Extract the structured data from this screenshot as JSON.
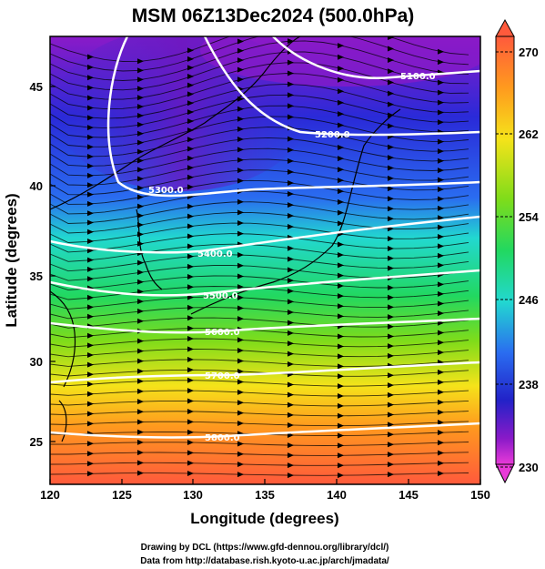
{
  "title": "MSM 06Z13Dec2024 (500.0hPa)",
  "x_axis": {
    "label": "Longitude (degrees)",
    "range": [
      120,
      150
    ],
    "ticks": [
      "120",
      "125",
      "130",
      "135",
      "140",
      "145",
      "150"
    ]
  },
  "y_axis": {
    "label": "Latitude  (degrees)",
    "range": [
      22.5,
      48
    ],
    "ticks": [
      "25",
      "30",
      "35",
      "40",
      "45"
    ]
  },
  "colorbar": {
    "range": [
      230,
      270
    ],
    "labels": [
      "270",
      "262",
      "254",
      "246",
      "238",
      "230"
    ],
    "colors": [
      "#ff5a3c",
      "#ff9a1e",
      "#f5e31a",
      "#7fdc1a",
      "#22d860",
      "#22d8d0",
      "#2a6cf0",
      "#2222c8",
      "#8a1ac8",
      "#e83ad8"
    ]
  },
  "contours": [
    {
      "label": "5100.0"
    },
    {
      "label": "5200.0"
    },
    {
      "label": "5300.0"
    },
    {
      "label": "5400.0"
    },
    {
      "label": "5500.0"
    },
    {
      "label": "5600.0"
    },
    {
      "label": "5700.0"
    },
    {
      "label": "5800.0"
    }
  ],
  "credits": [
    "Drawing by DCL (https://www.gfd-dennou.org/library/dcl/)",
    "Data from http://database.rish.kyoto-u.ac.jp/arch/jmadata/"
  ]
}
